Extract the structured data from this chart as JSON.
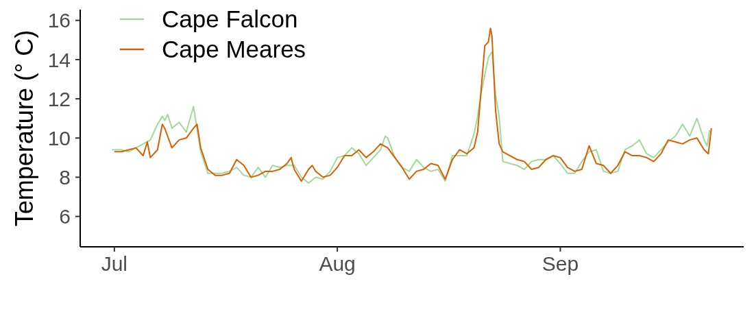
{
  "chart_data": {
    "type": "line",
    "ylabel": "Temperature (° C)",
    "legend": "top left",
    "xlim": [
      "--06-26T06:00",
      "--09-26T12:00"
    ],
    "xticks": [
      {
        "value": "--07-01",
        "label": "Jul"
      },
      {
        "value": "--08-01",
        "label": "Aug"
      },
      {
        "value": "--09-01",
        "label": "Sep"
      }
    ],
    "ylim": [
      4.45,
      16.55
    ],
    "yticks": [
      6,
      8,
      10,
      12,
      14,
      16
    ],
    "series": [
      {
        "name": "Cape Falcon",
        "color": "#a1d99b",
        "x": [
          "--06-30T16:00",
          "--07-02",
          "--07-03",
          "--07-04",
          "--07-05",
          "--07-06",
          "--07-07",
          "--07-07T16:00",
          "--07-08",
          "--07-08T10:00",
          "--07-09",
          "--07-10",
          "--07-11",
          "--07-12",
          "--07-13",
          "--07-14",
          "--07-15",
          "--07-16",
          "--07-17",
          "--07-18",
          "--07-19",
          "--07-20",
          "--07-21",
          "--07-22",
          "--07-23",
          "--07-24",
          "--07-25",
          "--07-26",
          "--07-27",
          "--07-28",
          "--07-29",
          "--07-30",
          "--07-31",
          "--08-01",
          "--08-02",
          "--08-03",
          "--08-04",
          "--08-05",
          "--08-06",
          "--08-07",
          "--08-07T16:00",
          "--08-08",
          "--08-09",
          "--08-10",
          "--08-11",
          "--08-12",
          "--08-13",
          "--08-14",
          "--08-15",
          "--08-16",
          "--08-17",
          "--08-18",
          "--08-19",
          "--08-20",
          "--08-20T12:00",
          "--08-21",
          "--08-21T12:00",
          "--08-22",
          "--08-22T12:00",
          "--08-23",
          "--08-23T12:00",
          "--08-24",
          "--08-25",
          "--08-26",
          "--08-27",
          "--08-28",
          "--08-29",
          "--08-30",
          "--08-31",
          "--09-01",
          "--09-02",
          "--09-03",
          "--09-04",
          "--09-05",
          "--09-06",
          "--09-07",
          "--09-08",
          "--09-09",
          "--09-10",
          "--09-11",
          "--09-12",
          "--09-13",
          "--09-14",
          "--09-15",
          "--09-16",
          "--09-17",
          "--09-18",
          "--09-19",
          "--09-20",
          "--09-21",
          "--09-21T10:00",
          "--09-21T18:00"
        ],
        "values": [
          9.4,
          9.4,
          9.3,
          9.5,
          9.7,
          9.9,
          10.7,
          11.1,
          10.9,
          11.2,
          10.5,
          10.8,
          10.3,
          11.6,
          9.3,
          8.2,
          8.2,
          8.2,
          8.3,
          8.5,
          8.1,
          8.0,
          8.5,
          8.0,
          8.6,
          8.5,
          8.6,
          8.6,
          8.0,
          7.7,
          8.0,
          7.9,
          8.3,
          9.0,
          9.1,
          9.5,
          9.2,
          8.6,
          9.0,
          9.4,
          10.1,
          10.0,
          9.0,
          8.5,
          8.3,
          8.9,
          8.5,
          8.3,
          8.4,
          7.8,
          9.1,
          9.1,
          9.1,
          10.2,
          11.1,
          12.3,
          13.2,
          14.1,
          14.4,
          12.2,
          11.1,
          8.8,
          8.7,
          8.6,
          8.4,
          8.8,
          8.9,
          8.9,
          9.1,
          8.7,
          8.2,
          8.2,
          8.8,
          9.3,
          9.4,
          8.3,
          8.2,
          8.3,
          9.4,
          9.6,
          9.9,
          9.2,
          9.0,
          9.4,
          9.8,
          10.1,
          10.7,
          10.1,
          11.0,
          9.9,
          9.6,
          10.4
        ]
      },
      {
        "name": "Cape Meares",
        "color": "#d95f02",
        "x": [
          "--07-01",
          "--07-02",
          "--07-03",
          "--07-04",
          "--07-05",
          "--07-05T14:00",
          "--07-06",
          "--07-07",
          "--07-07T16:00",
          "--07-08",
          "--07-09",
          "--07-10",
          "--07-11",
          "--07-12",
          "--07-12T12:00",
          "--07-13",
          "--07-14",
          "--07-15",
          "--07-16",
          "--07-17",
          "--07-18",
          "--07-19",
          "--07-20",
          "--07-21",
          "--07-22",
          "--07-23",
          "--07-24",
          "--07-25",
          "--07-25T14:00",
          "--07-26",
          "--07-27",
          "--07-28",
          "--07-28T12:00",
          "--07-29",
          "--07-30",
          "--07-31",
          "--08-01",
          "--08-02",
          "--08-03",
          "--08-04",
          "--08-05",
          "--08-06",
          "--08-07",
          "--08-08",
          "--08-09",
          "--08-10",
          "--08-11",
          "--08-12",
          "--08-13",
          "--08-14",
          "--08-15",
          "--08-16",
          "--08-17",
          "--08-18",
          "--08-19",
          "--08-20",
          "--08-20T12:00",
          "--08-21",
          "--08-21T12:00",
          "--08-22",
          "--08-22T07:00",
          "--08-22T12:00",
          "--08-23",
          "--08-23T12:00",
          "--08-24",
          "--08-25",
          "--08-26",
          "--08-27",
          "--08-28",
          "--08-29",
          "--08-30",
          "--08-31",
          "--09-01",
          "--09-02",
          "--09-03",
          "--09-04",
          "--09-05",
          "--09-06",
          "--09-07",
          "--09-08",
          "--09-09",
          "--09-10",
          "--09-11",
          "--09-12",
          "--09-13",
          "--09-14",
          "--09-15",
          "--09-16",
          "--09-17",
          "--09-18",
          "--09-19",
          "--09-20",
          "--09-21",
          "--09-21T14:00",
          "--09-22"
        ],
        "values": [
          9.3,
          9.3,
          9.4,
          9.5,
          9.1,
          9.8,
          9.0,
          9.4,
          10.7,
          10.5,
          9.5,
          9.9,
          10.0,
          10.5,
          10.7,
          9.5,
          8.4,
          8.1,
          8.1,
          8.2,
          8.9,
          8.6,
          8.0,
          8.1,
          8.3,
          8.3,
          8.4,
          8.7,
          9.0,
          8.4,
          7.8,
          8.4,
          8.6,
          8.3,
          8.0,
          8.1,
          8.5,
          9.1,
          9.1,
          9.4,
          9.0,
          9.3,
          9.7,
          9.5,
          9.0,
          8.5,
          7.9,
          8.3,
          8.4,
          8.7,
          8.6,
          7.9,
          8.9,
          9.4,
          9.2,
          9.5,
          10.3,
          12.5,
          14.7,
          14.9,
          15.6,
          15.2,
          11.4,
          9.7,
          9.3,
          9.1,
          8.9,
          8.8,
          8.4,
          8.5,
          8.9,
          9.1,
          9.0,
          8.5,
          8.3,
          8.4,
          9.6,
          8.7,
          8.6,
          8.2,
          8.6,
          9.3,
          9.1,
          9.1,
          9.0,
          8.8,
          9.2,
          9.9,
          9.8,
          9.7,
          9.9,
          10.0,
          9.4,
          9.2,
          10.5
        ]
      }
    ]
  }
}
